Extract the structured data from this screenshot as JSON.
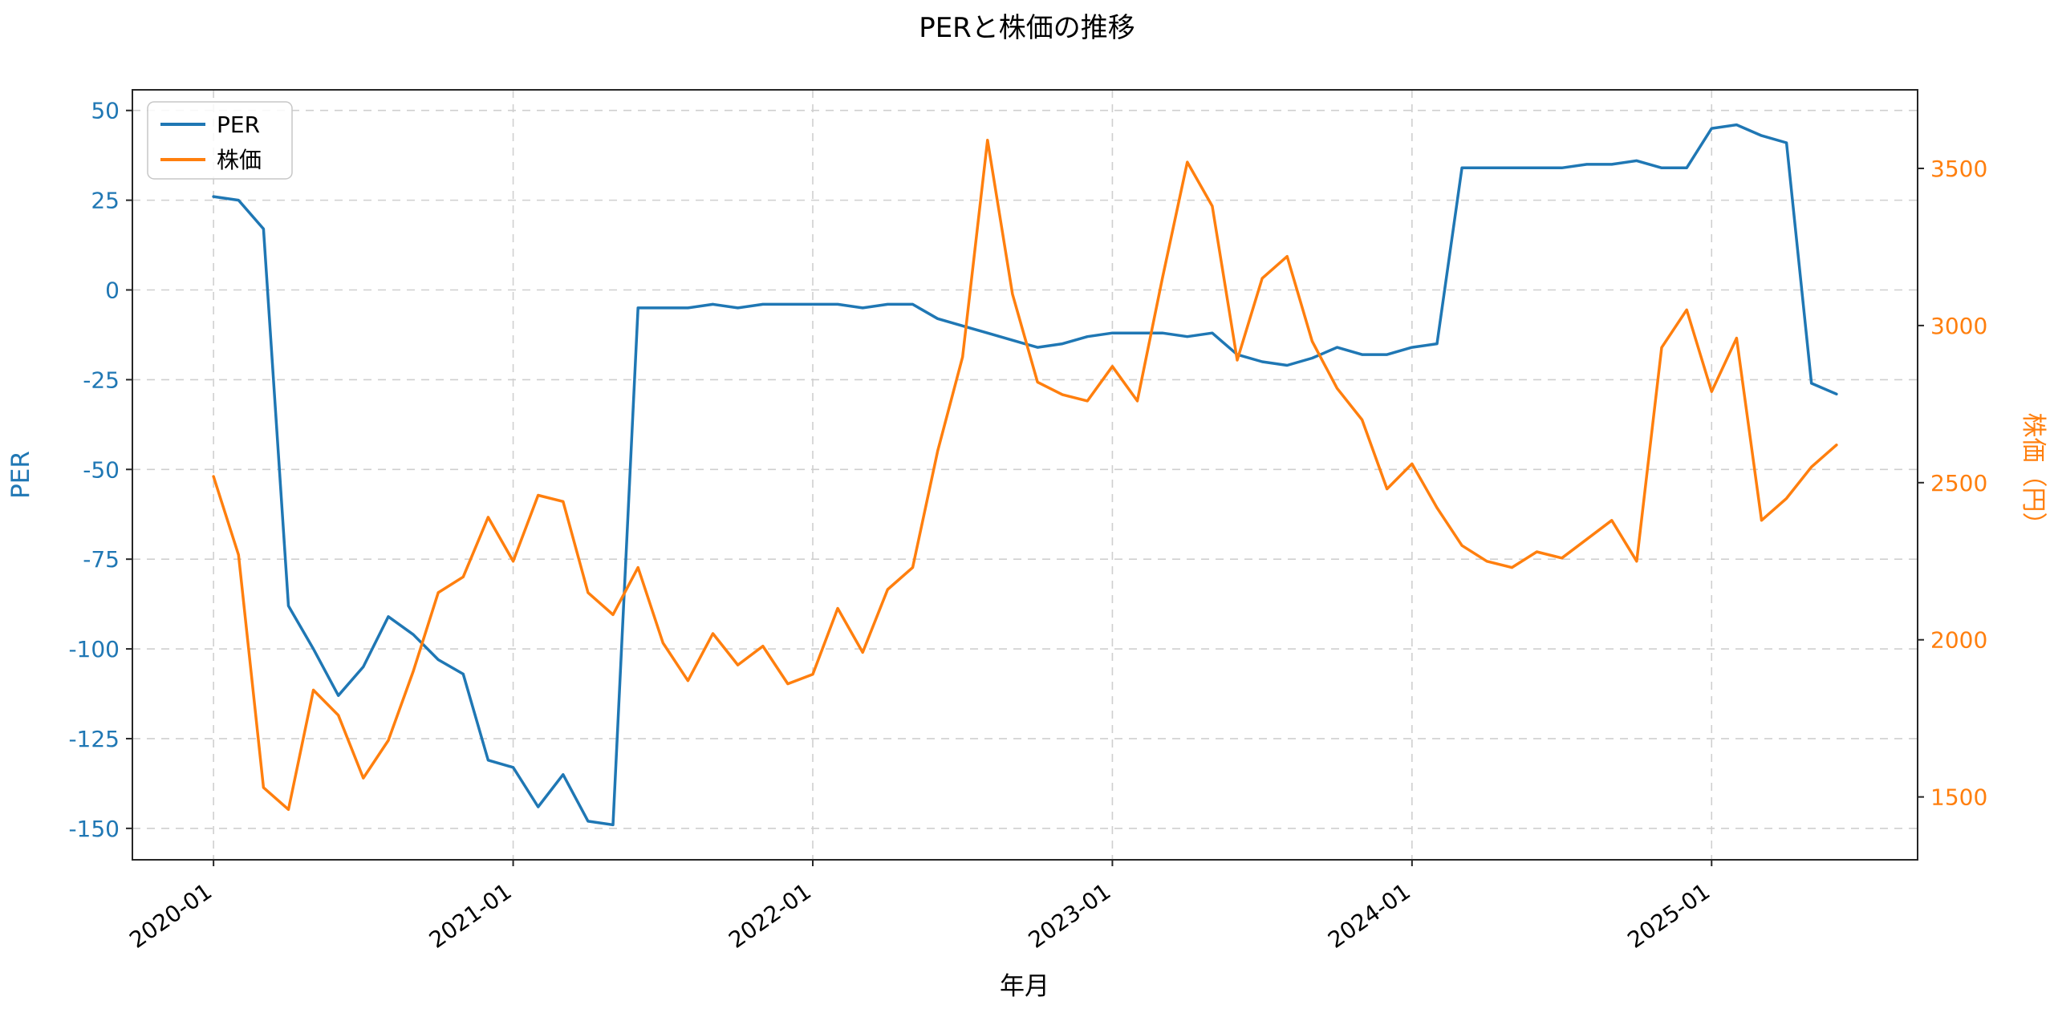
{
  "chart_data": {
    "type": "line",
    "title": "PERと株価の推移",
    "xlabel": "年月",
    "ylabel_left": "PER",
    "ylabel_right": "株価（円）",
    "grid": true,
    "grid_style": "dashed",
    "legend": {
      "position": "upper-left",
      "entries": [
        "PER",
        "株価"
      ]
    },
    "colors": {
      "per": "#1f77b4",
      "kabuka": "#ff7f0e"
    },
    "x": [
      "2020-01",
      "2020-02",
      "2020-03",
      "2020-04",
      "2020-05",
      "2020-06",
      "2020-07",
      "2020-08",
      "2020-09",
      "2020-10",
      "2020-11",
      "2020-12",
      "2021-01",
      "2021-02",
      "2021-03",
      "2021-04",
      "2021-05",
      "2021-06",
      "2021-07",
      "2021-08",
      "2021-09",
      "2021-10",
      "2021-11",
      "2021-12",
      "2022-01",
      "2022-02",
      "2022-03",
      "2022-04",
      "2022-05",
      "2022-06",
      "2022-07",
      "2022-08",
      "2022-09",
      "2022-10",
      "2022-11",
      "2022-12",
      "2023-01",
      "2023-02",
      "2023-03",
      "2023-04",
      "2023-05",
      "2023-06",
      "2023-07",
      "2023-08",
      "2023-09",
      "2023-10",
      "2023-11",
      "2023-12",
      "2024-01",
      "2024-02",
      "2024-03",
      "2024-04",
      "2024-05",
      "2024-06",
      "2024-07",
      "2024-08",
      "2024-09",
      "2024-10",
      "2024-11",
      "2024-12",
      "2025-01",
      "2025-02",
      "2025-03",
      "2025-04",
      "2025-05",
      "2025-06"
    ],
    "x_ticks": [
      "2020-01",
      "2021-01",
      "2022-01",
      "2023-01",
      "2024-01",
      "2025-01"
    ],
    "y_ticks_left": [
      50,
      25,
      0,
      -25,
      -50,
      -75,
      -100,
      -125,
      -150
    ],
    "y_ticks_right": [
      1500,
      2000,
      2500,
      3000,
      3500
    ],
    "ylim_left": [
      -158.75,
      55.75
    ],
    "ylim_right": [
      1300,
      3750
    ],
    "xlim_index": [
      -3.25,
      68.25
    ],
    "series": [
      {
        "name": "PER",
        "axis": "left",
        "color": "#1f77b4",
        "values": [
          26,
          25,
          17,
          -88,
          -100,
          -113,
          -105,
          -91,
          -96,
          -103,
          -107,
          -131,
          -133,
          -144,
          -135,
          -148,
          -149,
          -5,
          -5,
          -5,
          -4,
          -5,
          -4,
          -4,
          -4,
          -4,
          -5,
          -4,
          -4,
          -8,
          -10,
          -12,
          -14,
          -16,
          -15,
          -13,
          -12,
          -12,
          -12,
          -13,
          -12,
          -18,
          -20,
          -21,
          -19,
          -16,
          -18,
          -18,
          -16,
          -15,
          34,
          34,
          34,
          34,
          34,
          35,
          35,
          36,
          34,
          34,
          45,
          46,
          43,
          41,
          -26,
          -29
        ]
      },
      {
        "name": "株価",
        "axis": "right",
        "color": "#ff7f0e",
        "values": [
          2520,
          2270,
          1530,
          1460,
          1840,
          1760,
          1560,
          1680,
          1900,
          2150,
          2200,
          2390,
          2250,
          2460,
          2440,
          2150,
          2080,
          2230,
          1990,
          1870,
          2020,
          1920,
          1980,
          1860,
          1890,
          2100,
          1960,
          2160,
          2230,
          2600,
          2900,
          3590,
          3100,
          2820,
          2780,
          2760,
          2870,
          2760,
          3150,
          3520,
          3380,
          2890,
          3150,
          3220,
          2950,
          2800,
          2700,
          2480,
          2560,
          2420,
          2300,
          2250,
          2230,
          2280,
          2260,
          2320,
          2380,
          2250,
          2930,
          3050,
          2790,
          2960,
          2380,
          2450,
          2550,
          2620
        ]
      }
    ]
  }
}
